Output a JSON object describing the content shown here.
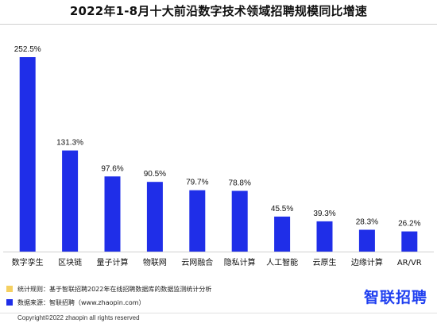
{
  "chart_data": {
    "type": "bar",
    "title": "2022年1-8月十大前沿数字技术领域招聘规模同比增速",
    "xlabel": "",
    "ylabel": "",
    "ylim": [
      0,
      260
    ],
    "grid": false,
    "categories": [
      "数字孪生",
      "区块链",
      "量子计算",
      "物联网",
      "云网融合",
      "隐私计算",
      "人工智能",
      "云原生",
      "边缘计算",
      "AR/VR"
    ],
    "values": [
      252.5,
      131.3,
      97.6,
      90.5,
      79.7,
      78.8,
      45.5,
      39.3,
      28.3,
      26.2
    ],
    "value_labels": [
      "252.5%",
      "131.3%",
      "97.6%",
      "90.5%",
      "79.7%",
      "78.8%",
      "45.5%",
      "39.3%",
      "28.3%",
      "26.2%"
    ],
    "bar_color": "#1f2ee8"
  },
  "legend": {
    "items": [
      {
        "label": "统计规则：",
        "text": "基于智联招聘2022年在线招聘数据库的数据监测统计分析",
        "color": "#f5d061"
      },
      {
        "label": "数据来源：",
        "text": "智联招聘（www.zhaopin.com）",
        "color": "#1f2ee8"
      }
    ]
  },
  "brand": {
    "logo_text": "智联招聘",
    "color": "#1f3ff0"
  },
  "footer": {
    "copyright": "Copyright©2022 zhaopin all rights reserved"
  }
}
